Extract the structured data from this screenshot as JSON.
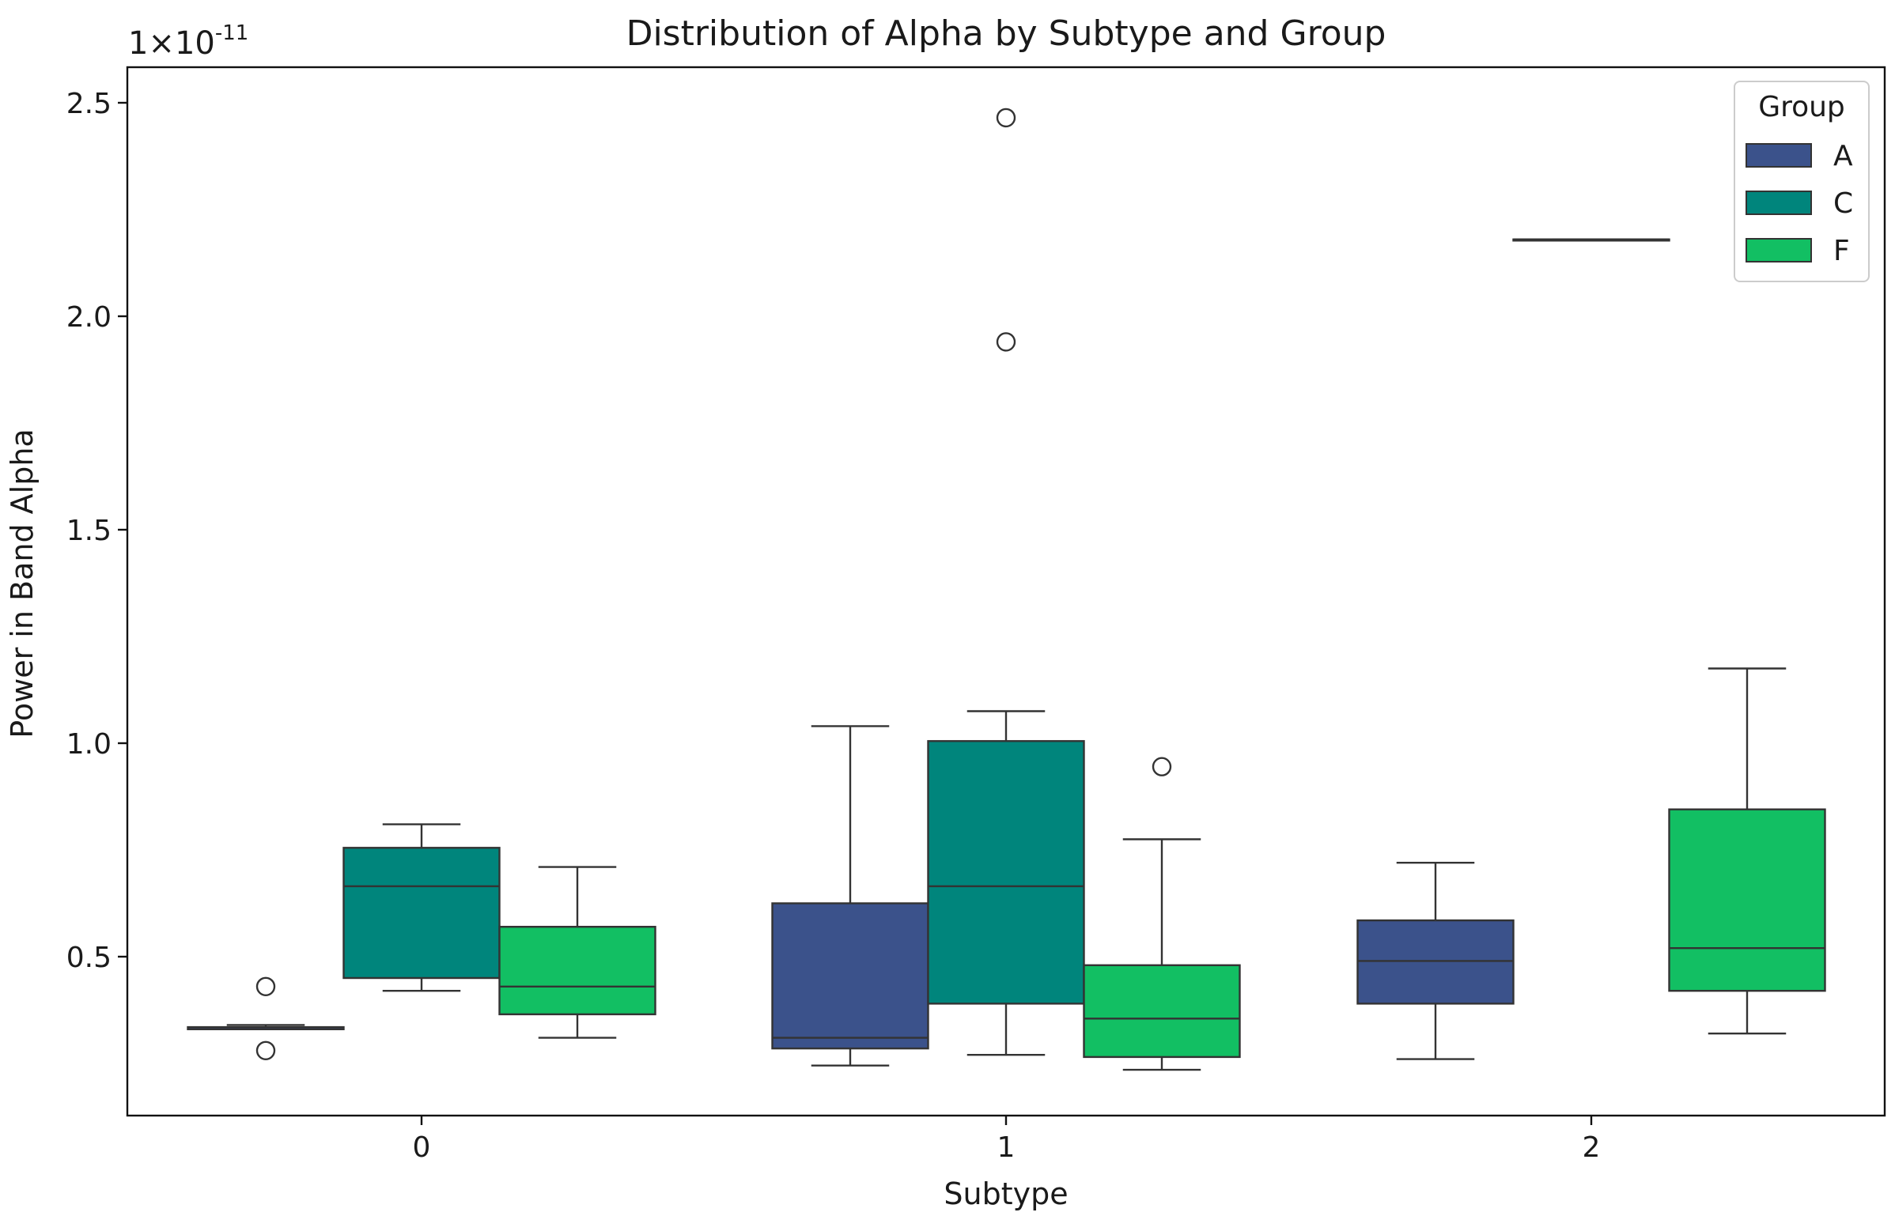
{
  "chart_data": {
    "type": "boxplot",
    "title": "Distribution of Alpha by Subtype and Group",
    "xlabel": "Subtype",
    "ylabel": "Power in Band Alpha",
    "scale_label": "1×10",
    "scale_exponent": "-11",
    "categories": [
      "0",
      "1",
      "2"
    ],
    "ylim": [
      0.14,
      2.6
    ],
    "yticks": [
      0.5,
      1.0,
      1.5,
      2.0,
      2.5
    ],
    "ytick_labels": [
      "0.5",
      "1.0",
      "1.5",
      "2.0",
      "2.5"
    ],
    "legend": {
      "title": "Group",
      "placement": "top-right"
    },
    "series": [
      {
        "name": "A",
        "color": "#3b528b",
        "boxes": [
          {
            "category": "0",
            "whislo": 0.33,
            "q1": 0.33,
            "med": 0.33,
            "q3": 0.335,
            "whishi": 0.34,
            "fliers": [
              0.43,
              0.28
            ]
          },
          {
            "category": "1",
            "whislo": 0.245,
            "q1": 0.285,
            "med": 0.31,
            "q3": 0.625,
            "whishi": 1.04,
            "fliers": []
          },
          {
            "category": "2",
            "whislo": 0.26,
            "q1": 0.39,
            "med": 0.49,
            "q3": 0.585,
            "whishi": 0.72,
            "fliers": []
          }
        ]
      },
      {
        "name": "C",
        "color": "#00857c",
        "boxes": [
          {
            "category": "0",
            "whislo": 0.42,
            "q1": 0.45,
            "med": 0.665,
            "q3": 0.755,
            "whishi": 0.81,
            "fliers": []
          },
          {
            "category": "1",
            "whislo": 0.27,
            "q1": 0.39,
            "med": 0.665,
            "q3": 1.005,
            "whishi": 1.075,
            "fliers": [
              2.465,
              1.94
            ]
          },
          {
            "category": "2",
            "whislo": 2.18,
            "q1": 2.18,
            "med": 2.18,
            "q3": 2.18,
            "whishi": 2.18,
            "fliers": []
          }
        ]
      },
      {
        "name": "F",
        "color": "#12bf63",
        "boxes": [
          {
            "category": "0",
            "whislo": 0.31,
            "q1": 0.365,
            "med": 0.43,
            "q3": 0.57,
            "whishi": 0.71,
            "fliers": []
          },
          {
            "category": "1",
            "whislo": 0.235,
            "q1": 0.265,
            "med": 0.355,
            "q3": 0.48,
            "whishi": 0.775,
            "fliers": [
              0.945
            ]
          },
          {
            "category": "2",
            "whislo": 0.32,
            "q1": 0.42,
            "med": 0.52,
            "q3": 0.845,
            "whishi": 1.175,
            "fliers": []
          }
        ]
      }
    ]
  }
}
